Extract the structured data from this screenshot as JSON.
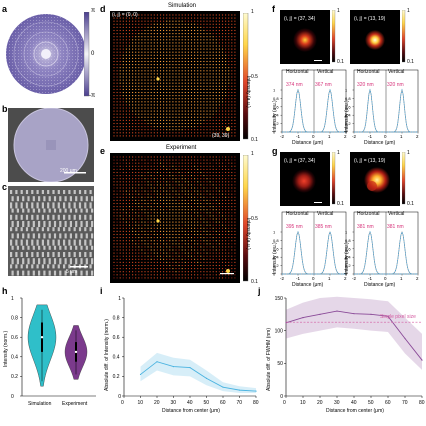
{
  "panels": {
    "a": "a",
    "b": "b",
    "c": "c",
    "d": "d",
    "e": "e",
    "f": "f",
    "g": "g",
    "h": "h",
    "i": "i",
    "j": "j"
  },
  "phase_colorbar": {
    "top": "π",
    "mid": "0",
    "bottom": "-π"
  },
  "scalebar_b": "200 μm",
  "scalebar_c": "5 μm",
  "d_panel": {
    "title": "Simulation",
    "coord_topleft": "(i, j) = (0, 0)",
    "coord_bottomright": "(39, 39)"
  },
  "e_panel": {
    "title": "Experiment"
  },
  "intensity_colorbar": {
    "label": "Intensity (a.u.)",
    "top": "1",
    "mid": "0.5",
    "bottom": "0.1"
  },
  "f_panel": {
    "spot1_label": "(i, j) = (37, 34)",
    "spot2_label": "(i, j) = (13, 19)",
    "fwhm1_h": "374 nm",
    "fwhm1_v": "367 nm",
    "fwhm2_h": "320 nm",
    "fwhm2_v": "320 nm"
  },
  "g_panel": {
    "spot1_label": "(i, j) = (37, 34)",
    "spot2_label": "(i, j) = (13, 19)",
    "fwhm1_h": "395 nm",
    "fwhm1_v": "385 nm",
    "fwhm2_h": "381 nm",
    "fwhm2_v": "381 nm"
  },
  "profile_axes": {
    "legend_h": "Horizontal",
    "legend_v": "Vertical",
    "ylabel": "Intensity (a.u.)",
    "xlabel": "Distance (μm)",
    "xticks": [
      "-2",
      "-1",
      "0",
      "1",
      "2"
    ],
    "yticks": [
      "0",
      "0.2",
      "0.4",
      "0.6",
      "0.8",
      "1"
    ],
    "colors": {
      "horizontal": "#9a9a9a",
      "vertical": "#3da0d8"
    }
  },
  "chart_data": [
    {
      "id": "h",
      "type": "violin",
      "ylabel": "Intensity (norm.)",
      "categories": [
        "Simulation",
        "Experiment"
      ],
      "yticks": [
        "0",
        "0.2",
        "0.4",
        "0.6",
        "0.8",
        "1"
      ],
      "ylim": [
        0,
        1
      ],
      "series": [
        {
          "name": "Simulation",
          "color": "#2fbfc9",
          "min": 0.1,
          "q1": 0.45,
          "median": 0.6,
          "q3": 0.75,
          "max": 0.93
        },
        {
          "name": "Experiment",
          "color": "#7b3a8c",
          "min": 0.17,
          "q1": 0.35,
          "median": 0.45,
          "q3": 0.55,
          "max": 0.72
        }
      ]
    },
    {
      "id": "i",
      "type": "line",
      "xlabel": "Distance from center (μm)",
      "ylabel": "Absolute diff. of Intensity (norm.)",
      "x": [
        10,
        20,
        30,
        40,
        50,
        60,
        70,
        80
      ],
      "y": [
        0.22,
        0.35,
        0.3,
        0.29,
        0.18,
        0.09,
        0.06,
        0.05
      ],
      "band_low": [
        0.15,
        0.26,
        0.21,
        0.2,
        0.11,
        0.05,
        0.03,
        0.03
      ],
      "band_high": [
        0.3,
        0.44,
        0.39,
        0.37,
        0.26,
        0.14,
        0.1,
        0.08
      ],
      "xlim": [
        0,
        80
      ],
      "ylim": [
        0,
        1
      ],
      "xticks": [
        "0",
        "10",
        "20",
        "30",
        "40",
        "50",
        "60",
        "70",
        "80"
      ],
      "yticks": [
        "0",
        "0.2",
        "0.4",
        "0.6",
        "0.8",
        "1"
      ],
      "color": "#4ab3e0"
    },
    {
      "id": "j",
      "type": "line",
      "xlabel": "Distance from center (μm)",
      "ylabel": "Absolute diff. of FWHM (nm)",
      "x": [
        0,
        10,
        20,
        30,
        40,
        50,
        60,
        70,
        80
      ],
      "y": [
        112,
        120,
        125,
        130,
        126,
        125,
        122,
        88,
        55
      ],
      "band_low": [
        88,
        95,
        100,
        105,
        103,
        100,
        98,
        65,
        40
      ],
      "band_high": [
        132,
        143,
        150,
        152,
        150,
        148,
        145,
        120,
        95
      ],
      "reference_line": {
        "label": "Single pixel size",
        "y": 113
      },
      "xlim": [
        0,
        80
      ],
      "ylim": [
        0,
        150
      ],
      "xticks": [
        "0",
        "10",
        "20",
        "30",
        "40",
        "50",
        "60",
        "70",
        "80"
      ],
      "yticks": [
        "0",
        "50",
        "100",
        "150"
      ],
      "color": "#8a4a98",
      "ref_color": "#d45aa0"
    }
  ]
}
